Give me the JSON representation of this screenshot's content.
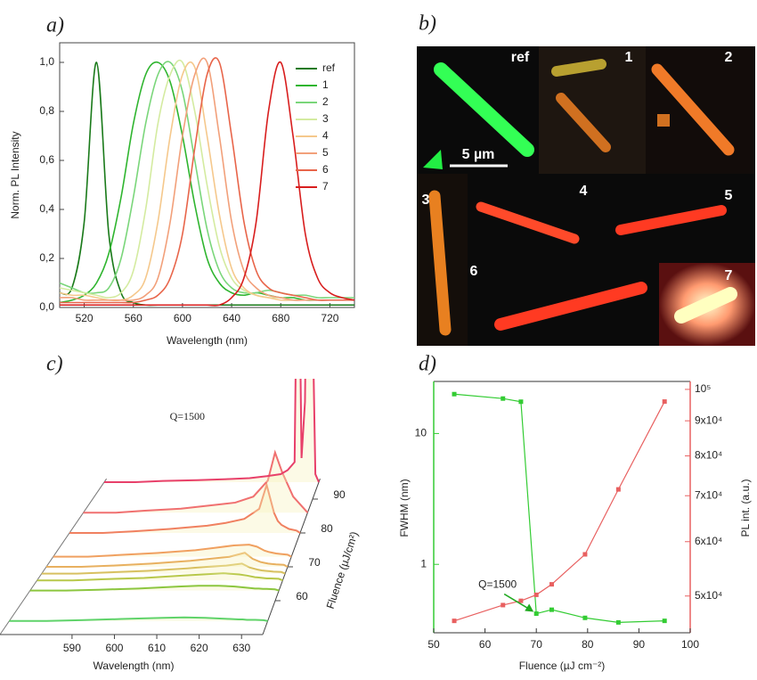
{
  "chart_data": [
    {
      "type": "line",
      "title": "a)",
      "x_label": "Wavelength (nm)",
      "y_label": "Norm. PL Intensity",
      "xlim": [
        500,
        740
      ],
      "xticks": [
        520,
        560,
        600,
        640,
        680,
        720
      ],
      "ylim": [
        0,
        1.08
      ],
      "yticks": [
        {
          "value": 0,
          "label": "0,0"
        },
        {
          "value": 0.2,
          "label": "0,2"
        },
        {
          "value": 0.4,
          "label": "0,4"
        },
        {
          "value": 0.6,
          "label": "0,6"
        },
        {
          "value": 0.8,
          "label": "0,8"
        },
        {
          "value": 1.0,
          "label": "1,0"
        }
      ],
      "legend": "upper right",
      "grid": false,
      "x": [
        500,
        510,
        520,
        530,
        540,
        550,
        560,
        570,
        580,
        590,
        600,
        610,
        620,
        630,
        640,
        650,
        660,
        670,
        680,
        690,
        700,
        710,
        720,
        730,
        740
      ],
      "series": [
        {
          "name": "ref",
          "color": "#1a7a1a",
          "values": [
            0.06,
            0.08,
            0.35,
            1.0,
            0.3,
            0.06,
            0.02,
            0.01,
            0.01,
            0.01,
            0.01,
            0.01,
            0.01,
            0.01,
            0.01,
            0.01,
            0.01,
            0.01,
            0.01,
            0.01,
            0.01,
            0.01,
            0.01,
            0.01,
            0.01
          ]
        },
        {
          "name": "1",
          "color": "#2fb52f",
          "values": [
            0.02,
            0.03,
            0.05,
            0.1,
            0.22,
            0.45,
            0.75,
            0.95,
            1.0,
            0.92,
            0.7,
            0.42,
            0.2,
            0.1,
            0.06,
            0.05,
            0.06,
            0.05,
            0.04,
            0.04,
            0.03,
            0.03,
            0.03,
            0.03,
            0.03
          ]
        },
        {
          "name": "2",
          "color": "#7ad67a",
          "values": [
            0.1,
            0.08,
            0.06,
            0.06,
            0.08,
            0.2,
            0.45,
            0.75,
            0.95,
            1.0,
            0.88,
            0.6,
            0.32,
            0.15,
            0.08,
            0.06,
            0.06,
            0.07,
            0.06,
            0.05,
            0.05,
            0.04,
            0.04,
            0.04,
            0.04
          ]
        },
        {
          "name": "3",
          "color": "#d4eba0",
          "values": [
            0.08,
            0.07,
            0.06,
            0.05,
            0.04,
            0.06,
            0.15,
            0.4,
            0.75,
            0.95,
            1.0,
            0.8,
            0.5,
            0.25,
            0.12,
            0.07,
            0.05,
            0.04,
            0.04,
            0.03,
            0.03,
            0.03,
            0.03,
            0.03,
            0.03
          ]
        },
        {
          "name": "4",
          "color": "#f5c88c",
          "values": [
            0.06,
            0.05,
            0.05,
            0.04,
            0.03,
            0.03,
            0.05,
            0.12,
            0.35,
            0.7,
            0.95,
            0.98,
            0.7,
            0.38,
            0.16,
            0.08,
            0.05,
            0.04,
            0.03,
            0.03,
            0.03,
            0.03,
            0.03,
            0.03,
            0.03
          ]
        },
        {
          "name": "5",
          "color": "#f2a07a",
          "values": [
            0.04,
            0.04,
            0.03,
            0.03,
            0.03,
            0.03,
            0.03,
            0.05,
            0.12,
            0.35,
            0.7,
            0.95,
            1.0,
            0.7,
            0.35,
            0.15,
            0.08,
            0.05,
            0.04,
            0.03,
            0.03,
            0.03,
            0.03,
            0.03,
            0.03
          ]
        },
        {
          "name": "6",
          "color": "#e8654a",
          "values": [
            0.02,
            0.02,
            0.02,
            0.02,
            0.02,
            0.02,
            0.02,
            0.03,
            0.05,
            0.12,
            0.3,
            0.65,
            0.95,
            1.0,
            0.7,
            0.35,
            0.15,
            0.08,
            0.06,
            0.05,
            0.04,
            0.03,
            0.03,
            0.03,
            0.03
          ]
        },
        {
          "name": "7",
          "color": "#d81e1e",
          "values": [
            0.01,
            0.01,
            0.01,
            0.01,
            0.01,
            0.01,
            0.01,
            0.01,
            0.01,
            0.01,
            0.01,
            0.01,
            0.01,
            0.01,
            0.04,
            0.12,
            0.35,
            0.8,
            1.0,
            0.7,
            0.3,
            0.12,
            0.06,
            0.04,
            0.03
          ]
        }
      ]
    },
    {
      "type": "image",
      "title": "b)",
      "panel_labels": [
        "ref",
        "1",
        "2",
        "3",
        "4",
        "5",
        "6",
        "7"
      ],
      "scale_bar": "5 µm"
    },
    {
      "type": "waterfall",
      "title": "c)",
      "annotation": "Q=1500",
      "x_label": "Wavelength (nm)",
      "z_label": "Fluence (µJ/cm²)",
      "xlim": [
        573,
        635
      ],
      "xticks": [
        590,
        600,
        610,
        620,
        630
      ],
      "zlim": [
        50,
        96
      ],
      "zticks": [
        60,
        70,
        80,
        90
      ],
      "x": [
        582,
        590,
        600,
        610,
        615,
        620,
        624,
        626,
        628,
        629,
        630,
        631,
        632,
        634
      ],
      "series": [
        {
          "fluence": 54,
          "color": "#5fd36a",
          "values": [
            0,
            0.02,
            0.05,
            0.08,
            0.09,
            0.08,
            0.06,
            0.05,
            0.04,
            0.04,
            0.03,
            0.03,
            0.03,
            0.02
          ]
        },
        {
          "fluence": 63,
          "color": "#8cc63f",
          "values": [
            0,
            0.02,
            0.05,
            0.1,
            0.12,
            0.12,
            0.1,
            0.08,
            0.06,
            0.05,
            0.05,
            0.04,
            0.04,
            0.03
          ]
        },
        {
          "fluence": 66,
          "color": "#b8c84a",
          "values": [
            0,
            0.03,
            0.06,
            0.12,
            0.15,
            0.18,
            0.15,
            0.12,
            0.08,
            0.07,
            0.06,
            0.05,
            0.05,
            0.04
          ]
        },
        {
          "fluence": 68,
          "color": "#d8c060",
          "values": [
            0,
            0.03,
            0.07,
            0.13,
            0.17,
            0.2,
            0.25,
            0.15,
            0.1,
            0.08,
            0.07,
            0.06,
            0.05,
            0.04
          ]
        },
        {
          "fluence": 70,
          "color": "#e8b060",
          "values": [
            0,
            0.03,
            0.08,
            0.15,
            0.2,
            0.25,
            0.35,
            0.2,
            0.12,
            0.1,
            0.08,
            0.07,
            0.06,
            0.05
          ]
        },
        {
          "fluence": 73,
          "color": "#f0a060",
          "values": [
            0,
            0.04,
            0.09,
            0.16,
            0.22,
            0.28,
            0.3,
            0.25,
            0.15,
            0.12,
            0.1,
            0.08,
            0.07,
            0.05
          ]
        },
        {
          "fluence": 80,
          "color": "#f08060",
          "values": [
            0,
            0.04,
            0.1,
            0.18,
            0.25,
            0.35,
            0.6,
            1.2,
            0.5,
            0.3,
            0.2,
            0.15,
            0.1,
            0.06
          ]
        },
        {
          "fluence": 86,
          "color": "#f07070",
          "values": [
            0,
            0.05,
            0.1,
            0.2,
            0.25,
            0.4,
            0.8,
            1.5,
            1.0,
            0.8,
            0.6,
            0.4,
            0.3,
            0.1
          ]
        },
        {
          "fluence": 95,
          "color": "#e8406a",
          "values": [
            0,
            0.03,
            0.05,
            0.08,
            0.1,
            0.15,
            0.2,
            0.3,
            0.5,
            8,
            0.6,
            2,
            10,
            0.2
          ]
        }
      ]
    },
    {
      "type": "dual-axis",
      "title": "d)",
      "x_label": "Fluence (µJ cm⁻²)",
      "y_label": "FWHM (nm)",
      "y2_label": "PL int. (a.u.)",
      "annotation": "Q=1500",
      "xlim": [
        50,
        100
      ],
      "xticks": [
        50,
        60,
        70,
        80,
        90,
        100
      ],
      "ylim": [
        0.3,
        25
      ],
      "yticks": [
        1,
        10
      ],
      "y_scale": "log",
      "y2lim": [
        44200,
        102700
      ],
      "y2_scale": "log",
      "y2ticks": [
        {
          "value": 50000,
          "label": "5x10⁴"
        },
        {
          "value": 60000,
          "label": "6x10⁴"
        },
        {
          "value": 70000,
          "label": "7x10⁴"
        },
        {
          "value": 80000,
          "label": "8x10⁴"
        },
        {
          "value": 90000,
          "label": "9x10⁴"
        },
        {
          "value": 100000,
          "label": "10⁵"
        }
      ],
      "x": [
        54,
        63.5,
        67,
        70,
        73,
        79.5,
        86,
        95
      ],
      "series": [
        {
          "color": "#33cc33",
          "values": [
            20,
            18.5,
            17.5,
            0.42,
            0.45,
            0.39,
            0.36,
            0.37
          ]
        },
        {
          "color": "#e86060",
          "axis": "y2",
          "values": [
            46000,
            48500,
            49200,
            50200,
            52000,
            57500,
            71500,
            96000
          ]
        }
      ]
    }
  ]
}
